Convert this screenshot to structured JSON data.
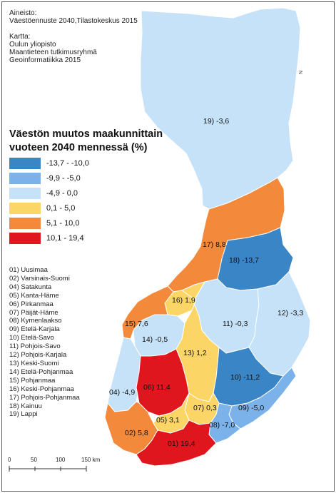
{
  "source": {
    "data_label": "Aineisto:",
    "data_value": "Väestöennuste 2040,Tilastokeskus 2015",
    "map_label": "Kartta:",
    "map_lines": [
      "Oulun yliopisto",
      "Maantieteen tutkimusryhmä",
      "Geoinformatiikka 2015"
    ]
  },
  "legend": {
    "title_line1": "Väestön muutos maakunnittain",
    "title_line2": "vuoteen 2040 mennessä (%)",
    "classes": [
      {
        "label": "-13,7 - -10,0",
        "color": "#3a85c6"
      },
      {
        "label": "-9,9 - -5,0",
        "color": "#7cb2ea"
      },
      {
        "label": "-4,9 - 0,0",
        "color": "#c6e2f9"
      },
      {
        "label": "0,1 - 5,0",
        "color": "#fbd565"
      },
      {
        "label": "5,1 - 10,0",
        "color": "#f3893a"
      },
      {
        "label": "10,1 - 19,4",
        "color": "#e0161e"
      }
    ]
  },
  "region_list": [
    "01) Uusimaa",
    "02) Varsinais-Suomi",
    "04) Satakunta",
    "05) Kanta-Häme",
    "06) Pirkanmaa",
    "07) Päijät-Häme",
    "08) Kymenlaakso",
    "09) Etelä-Karjala",
    "10) Etelä-Savo",
    "11) Pohjois-Savo",
    "12) Pohjois-Karjala",
    "13) Keski-Suomi",
    "14) Etelä-Pohjanmaa",
    "15) Pohjanmaa",
    "16) Keski-Pohjanmaa",
    "17) Pohjois-Pohjanmaa",
    "18) Kainuu",
    "19) Lappi"
  ],
  "map_labels": {
    "r19": "19) -3,6",
    "r17": "17) 8,8",
    "r18": "18) -13,7",
    "r16": "16) 1,9",
    "r15": "15) 7,6",
    "r11": "11) -0,3",
    "r12": "12) -3,3",
    "r14": "14) -0,5",
    "r13": "13) 1,2",
    "r10": "10) -11,2",
    "r04": "04) -4,9",
    "r06": "06) 11,4",
    "r07": "07) 0,3",
    "r09": "09) -5,0",
    "r05": "05) 3,1",
    "r08": "08) -7,0",
    "r02": "02) 5,8",
    "r01": "01) 19,4"
  },
  "scale_bar": {
    "ticks": [
      "0",
      "50",
      "100",
      "150 km"
    ]
  },
  "north_text": "N"
}
